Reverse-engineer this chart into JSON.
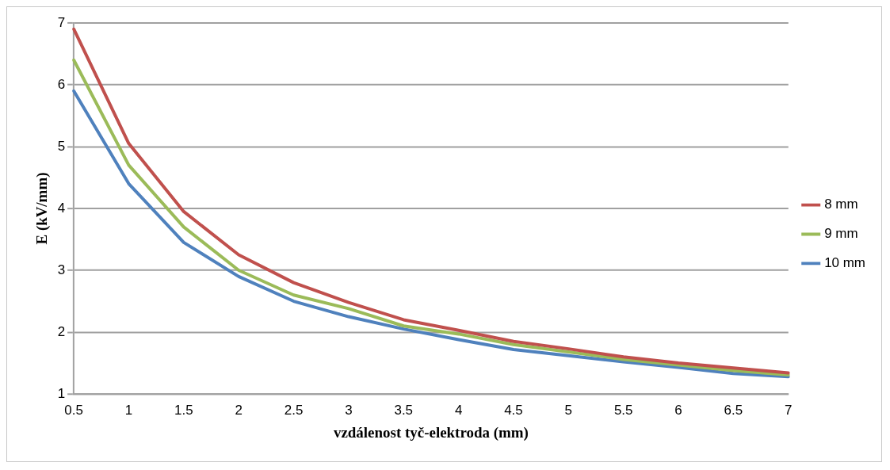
{
  "chart_data": {
    "type": "line",
    "xlabel": "vzdálenost tyč-elektroda (mm)",
    "ylabel": "E (kV/mm)",
    "categories": [
      "0.5",
      "1",
      "1.5",
      "2",
      "2.5",
      "3",
      "3.5",
      "4",
      "4.5",
      "5",
      "5.5",
      "6",
      "6.5",
      "7"
    ],
    "series": [
      {
        "name": "8 mm",
        "color": "#c0504d",
        "values": [
          6.9,
          5.05,
          3.95,
          3.25,
          2.8,
          2.48,
          2.2,
          2.03,
          1.85,
          1.73,
          1.6,
          1.5,
          1.42,
          1.34
        ]
      },
      {
        "name": "9 mm",
        "color": "#9bbb59",
        "values": [
          6.4,
          4.7,
          3.7,
          3.0,
          2.6,
          2.38,
          2.1,
          1.97,
          1.8,
          1.68,
          1.56,
          1.47,
          1.38,
          1.31
        ]
      },
      {
        "name": "10 mm",
        "color": "#4f81bd",
        "values": [
          5.9,
          4.4,
          3.45,
          2.9,
          2.5,
          2.25,
          2.05,
          1.88,
          1.72,
          1.62,
          1.52,
          1.43,
          1.33,
          1.28
        ]
      }
    ],
    "ylim": [
      1,
      7
    ],
    "yticks": [
      1,
      2,
      3,
      4,
      5,
      6,
      7
    ],
    "grid": "y",
    "legend": "right",
    "marker": "none",
    "line_style": "solid"
  }
}
